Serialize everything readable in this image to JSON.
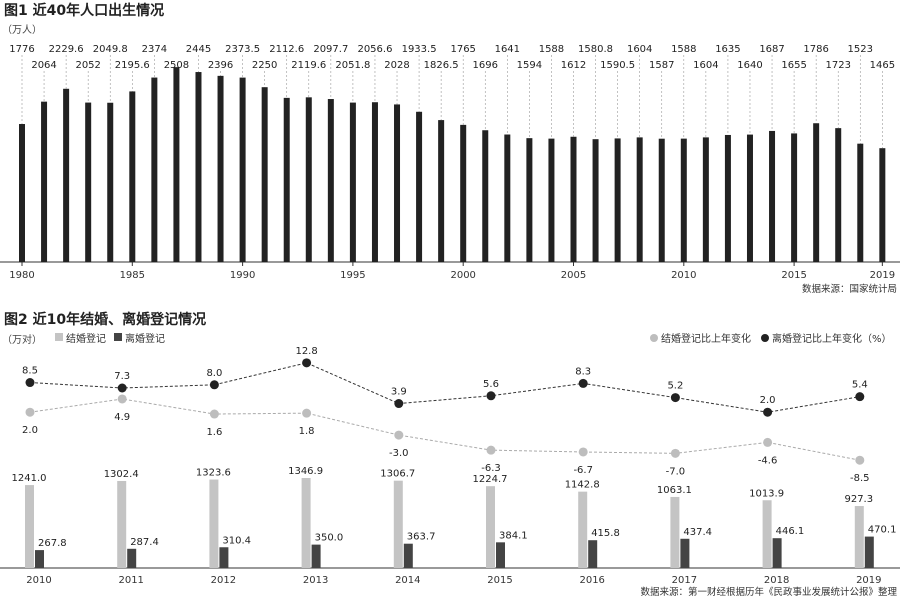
{
  "chart_data": [
    {
      "type": "bar",
      "title": "图1 近40年人口出生情况",
      "unit": "（万人）",
      "source": "数据来源：国家统计局",
      "x_tick_labels": [
        "1980",
        "1985",
        "1990",
        "1995",
        "2000",
        "2005",
        "2010",
        "2015",
        "2019"
      ],
      "categories": [
        "1980",
        "1981",
        "1982",
        "1983",
        "1984",
        "1985",
        "1986",
        "1987",
        "1988",
        "1989",
        "1990",
        "1991",
        "1992",
        "1993",
        "1994",
        "1995",
        "1996",
        "1997",
        "1998",
        "1999",
        "2000",
        "2001",
        "2002",
        "2003",
        "2004",
        "2005",
        "2006",
        "2007",
        "2008",
        "2009",
        "2010",
        "2011",
        "2012",
        "2013",
        "2014",
        "2015",
        "2016",
        "2017",
        "2018",
        "2019"
      ],
      "value_labels": [
        "1776",
        "2064",
        "2229.6",
        "2052",
        "2049.8",
        "2195.6",
        "2374",
        "2508",
        "2445",
        "2396",
        "2373.5",
        "2250",
        "2112.6",
        "2119.6",
        "2097.7",
        "2051.8",
        "2056.6",
        "2028",
        "1933.5",
        "1826.5",
        "1765",
        "1696",
        "1641",
        "1594",
        "1588",
        "1612",
        "1580.8",
        "1590.5",
        "1604",
        "1587",
        "1588",
        "1604",
        "1635",
        "1640",
        "1687",
        "1655",
        "1786",
        "1723",
        "1523",
        "1465"
      ],
      "values": [
        1776,
        2064,
        2229.6,
        2052,
        2049.8,
        2195.6,
        2374,
        2508,
        2445,
        2396,
        2373.5,
        2250,
        2112.6,
        2119.6,
        2097.7,
        2051.8,
        2056.6,
        2028,
        1933.5,
        1826.5,
        1765,
        1696,
        1641,
        1594,
        1588,
        1612,
        1580.8,
        1590.5,
        1604,
        1587,
        1588,
        1604,
        1635,
        1640,
        1687,
        1655,
        1786,
        1723,
        1523,
        1465
      ],
      "ylim": [
        0,
        2600
      ],
      "bar_color": "#222222"
    },
    {
      "type": "bar+line",
      "title": "图2 近10年结婚、离婚登记情况",
      "unit": "（万对）",
      "source": "数据来源：第一财经根据历年《民政事业发展统计公报》整理",
      "categories": [
        "2010",
        "2011",
        "2012",
        "2013",
        "2014",
        "2015",
        "2016",
        "2017",
        "2018",
        "2019"
      ],
      "bar_series": [
        {
          "name": "结婚登记",
          "color": "#c4c4c4",
          "values": [
            1241.0,
            1302.4,
            1323.6,
            1346.9,
            1306.7,
            1224.7,
            1142.8,
            1063.1,
            1013.9,
            927.3
          ],
          "labels": [
            "1241.0",
            "1302.4",
            "1323.6",
            "1346.9",
            "1306.7",
            "1224.7",
            "1142.8",
            "1063.1",
            "1013.9",
            "927.3"
          ]
        },
        {
          "name": "离婚登记",
          "color": "#444444",
          "values": [
            267.8,
            287.4,
            310.4,
            350.0,
            363.7,
            384.1,
            415.8,
            437.4,
            446.1,
            470.1
          ],
          "labels": [
            "267.8",
            "287.4",
            "310.4",
            "350.0",
            "363.7",
            "384.1",
            "415.8",
            "437.4",
            "446.1",
            "470.1"
          ]
        }
      ],
      "line_series": [
        {
          "name": "结婚登记比上年变化",
          "color": "#bdbdbd",
          "values": [
            2.0,
            4.9,
            1.6,
            1.8,
            -3.0,
            -6.3,
            -6.7,
            -7.0,
            -4.6,
            -8.5
          ],
          "labels": [
            "2.0",
            "4.9",
            "1.6",
            "1.8",
            "-3.0",
            "-6.3",
            "-6.7",
            "-7.0",
            "-4.6",
            "-8.5"
          ]
        },
        {
          "name": "离婚登记比上年变化（%）",
          "color": "#222222",
          "values": [
            8.5,
            7.3,
            8.0,
            12.8,
            3.9,
            5.6,
            8.3,
            5.2,
            2.0,
            5.4
          ],
          "labels": [
            "8.5",
            "7.3",
            "8.0",
            "12.8",
            "3.9",
            "5.6",
            "8.3",
            "5.2",
            "2.0",
            "5.4"
          ]
        }
      ],
      "legend_left": [
        "结婚登记",
        "离婚登记"
      ],
      "legend_right": [
        "结婚登记比上年变化",
        "离婚登记比上年变化（%）"
      ]
    }
  ]
}
